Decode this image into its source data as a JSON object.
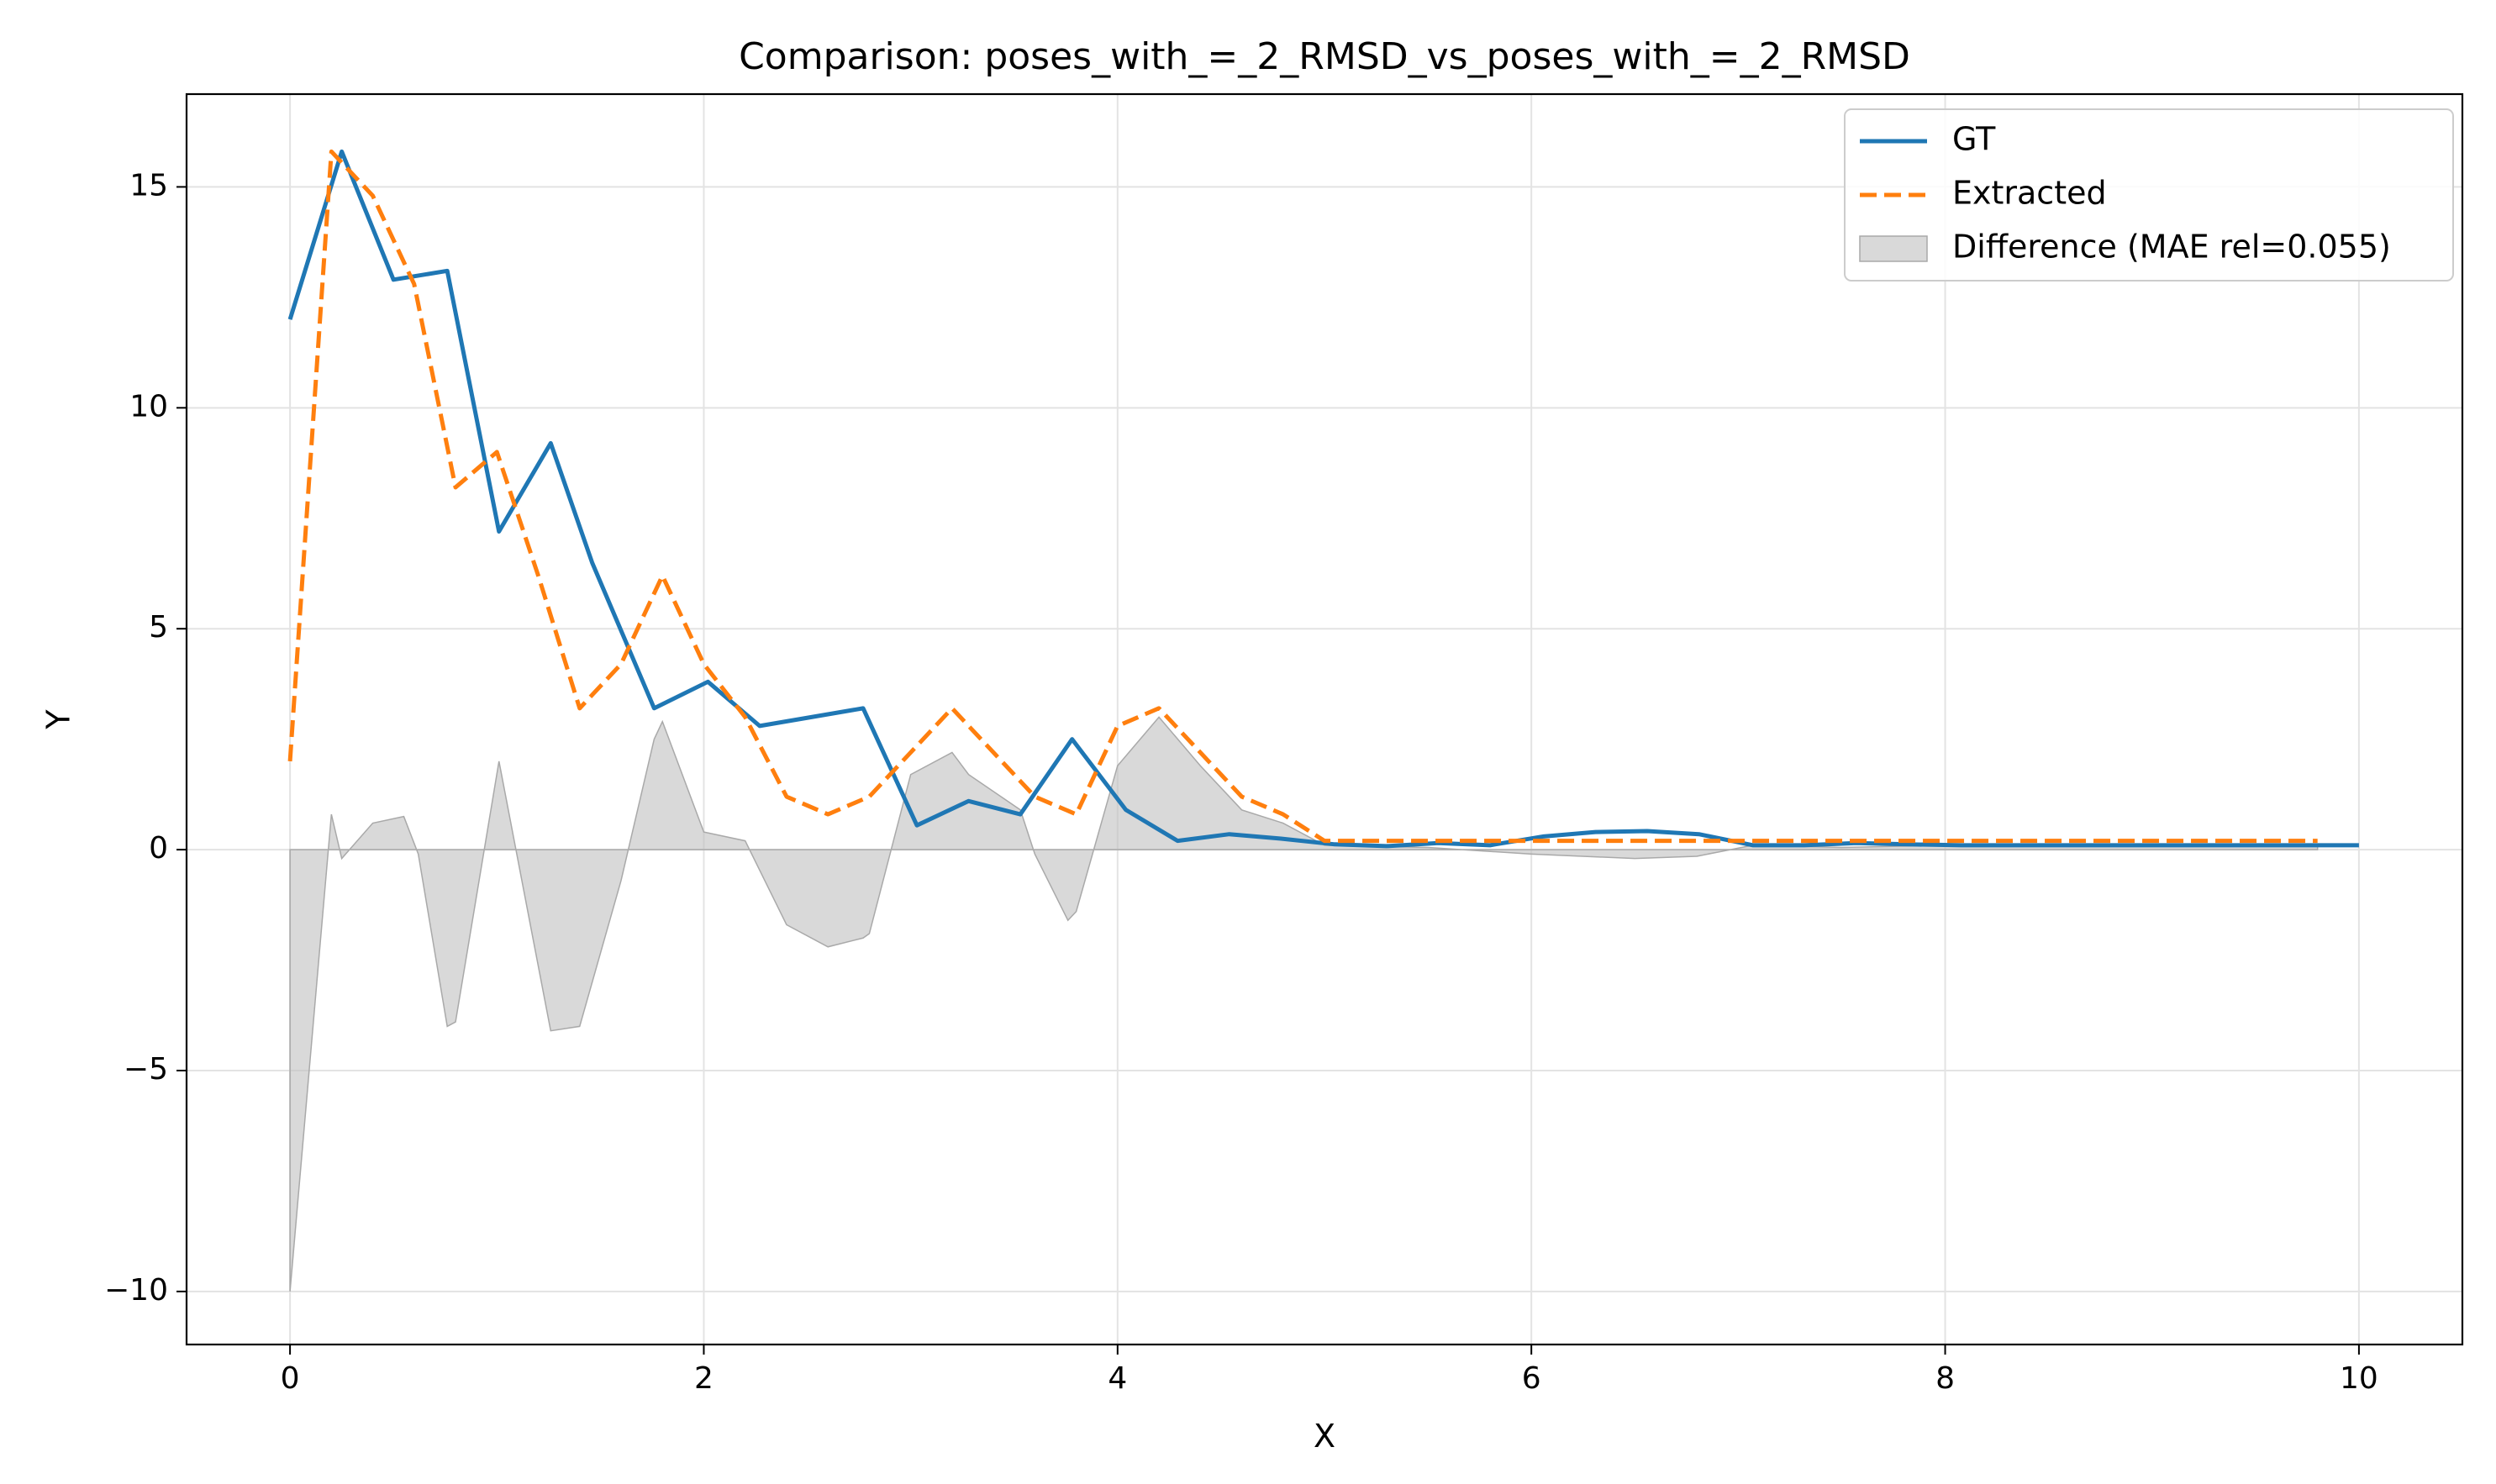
{
  "chart_data": {
    "type": "line",
    "title": "Comparison: poses_with_=_2_RMSD_vs_poses_with_=_2_RMSD",
    "xlabel": "X",
    "ylabel": "Y",
    "xlim": [
      -0.5,
      10.5
    ],
    "ylim": [
      -11.2,
      17.1
    ],
    "xticks": [
      0,
      2,
      4,
      6,
      8,
      10
    ],
    "yticks": [
      -10,
      -5,
      0,
      5,
      10,
      15
    ],
    "xtick_labels": [
      "0",
      "2",
      "4",
      "6",
      "8",
      "10"
    ],
    "ytick_labels": [
      "−10",
      "−5",
      "0",
      "5",
      "10",
      "15"
    ],
    "grid": true,
    "legend_position": "top-right",
    "series": [
      {
        "name": "GT",
        "color": "#1f77b4",
        "style": "solid",
        "x": [
          0,
          0.25,
          0.5,
          0.76,
          1.01,
          1.26,
          1.46,
          1.76,
          2.02,
          2.27,
          2.52,
          2.77,
          3.03,
          3.28,
          3.53,
          3.78,
          4.04,
          4.29,
          4.54,
          4.79,
          5.05,
          5.3,
          5.55,
          5.8,
          6.06,
          6.31,
          6.56,
          6.81,
          7.07,
          7.32,
          7.57,
          7.82,
          8.08,
          8.33,
          8.58,
          8.83,
          9.09,
          9.34,
          9.59,
          9.84,
          10.0
        ],
        "y": [
          12.0,
          15.8,
          12.9,
          13.1,
          7.2,
          9.2,
          6.5,
          3.2,
          3.8,
          2.8,
          3.0,
          3.2,
          0.55,
          1.1,
          0.8,
          2.5,
          0.9,
          0.2,
          0.35,
          0.25,
          0.12,
          0.08,
          0.15,
          0.1,
          0.3,
          0.4,
          0.42,
          0.35,
          0.1,
          0.1,
          0.15,
          0.12,
          0.1,
          0.1,
          0.1,
          0.1,
          0.1,
          0.1,
          0.1,
          0.1,
          0.1
        ]
      },
      {
        "name": "Extracted",
        "color": "#ff7f0e",
        "style": "dashed",
        "x": [
          0,
          0.2,
          0.4,
          0.6,
          0.8,
          1.0,
          1.2,
          1.4,
          1.6,
          1.8,
          2.0,
          2.2,
          2.4,
          2.6,
          2.8,
          3.0,
          3.2,
          3.4,
          3.6,
          3.8,
          4.0,
          4.2,
          4.4,
          4.6,
          4.8,
          5.0,
          5.2,
          5.4,
          5.6,
          5.8,
          6.0,
          6.2,
          6.4,
          6.6,
          6.8,
          7.0,
          7.2,
          7.4,
          7.6,
          7.8,
          8.0,
          8.2,
          8.4,
          8.6,
          8.8,
          9.0,
          9.2,
          9.4,
          9.6,
          9.8
        ],
        "y": [
          2.0,
          15.8,
          14.8,
          12.8,
          8.2,
          9.0,
          6.2,
          3.2,
          4.2,
          6.2,
          4.2,
          3.0,
          1.2,
          0.8,
          1.2,
          2.2,
          3.2,
          2.2,
          1.2,
          0.8,
          2.8,
          3.2,
          2.2,
          1.2,
          0.8,
          0.2,
          0.2,
          0.2,
          0.2,
          0.2,
          0.2,
          0.2,
          0.2,
          0.2,
          0.2,
          0.2,
          0.2,
          0.2,
          0.2,
          0.2,
          0.2,
          0.2,
          0.2,
          0.2,
          0.2,
          0.2,
          0.2,
          0.2,
          0.2,
          0.2
        ]
      },
      {
        "name": "Difference (MAE rel=0.055)",
        "color": "#bfbfbf",
        "style": "area",
        "x": [
          0,
          0.2,
          0.25,
          0.4,
          0.55,
          0.62,
          0.76,
          0.8,
          1.01,
          1.26,
          1.4,
          1.6,
          1.76,
          1.8,
          2.0,
          2.2,
          2.4,
          2.6,
          2.77,
          2.8,
          3.0,
          3.2,
          3.28,
          3.53,
          3.6,
          3.76,
          3.8,
          4.0,
          4.2,
          4.4,
          4.6,
          4.8,
          5.0,
          5.5,
          6.0,
          6.5,
          6.8,
          7.07,
          7.5,
          8.0,
          9.0,
          9.8
        ],
        "y": [
          -10.0,
          0.8,
          -0.2,
          0.6,
          0.75,
          -0.1,
          -4.0,
          -3.9,
          2.0,
          -4.1,
          -4.0,
          -0.7,
          2.5,
          2.9,
          0.4,
          0.2,
          -1.7,
          -2.2,
          -2.0,
          -1.9,
          1.7,
          2.2,
          1.7,
          0.9,
          -0.1,
          -1.6,
          -1.4,
          1.9,
          3.0,
          1.9,
          0.9,
          0.6,
          0.1,
          0.05,
          -0.1,
          -0.2,
          -0.15,
          0.1,
          0.05,
          0.1,
          0.1,
          0.1
        ]
      }
    ]
  }
}
